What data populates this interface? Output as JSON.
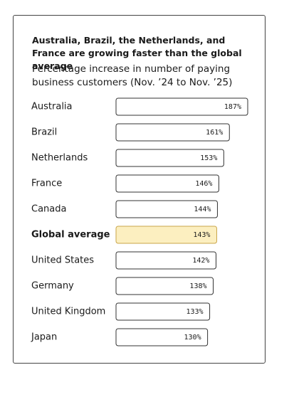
{
  "chart_data": {
    "type": "bar",
    "title": "Australia, Brazil, the Netherlands, and France are growing faster than the global average",
    "subtitle": "Percentage increase in number of paying business customers (Nov. ’24 to Nov. ’25)",
    "categories": [
      "Australia",
      "Brazil",
      "Netherlands",
      "France",
      "Canada",
      "Global average",
      "United States",
      "Germany",
      "United Kingdom",
      "Japan"
    ],
    "values": [
      187,
      161,
      153,
      146,
      144,
      143,
      142,
      138,
      133,
      130
    ],
    "value_labels": [
      "187%",
      "161%",
      "153%",
      "146%",
      "144%",
      "143%",
      "142%",
      "138%",
      "133%",
      "130%"
    ],
    "color": "#ffffff",
    "colors": [
      "#ffffff",
      "#ffffff",
      "#ffffff",
      "#ffffff",
      "#ffffff",
      "#fcefc0",
      "#ffffff",
      "#ffffff",
      "#ffffff",
      "#ffffff"
    ]
  }
}
